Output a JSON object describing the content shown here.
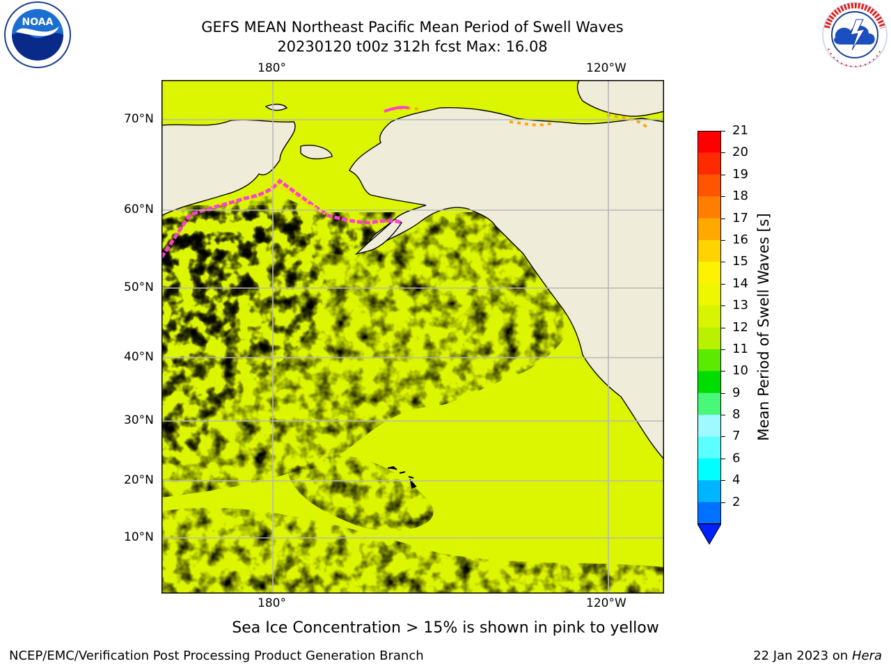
{
  "header": {
    "title": "GEFS MEAN Northeast Pacific Mean Period of Swell Waves",
    "subtitle": "20230120 t00z 312h fcst   Max: 16.08"
  },
  "logos": {
    "left": {
      "icon": "noaa-logo-icon",
      "text": "NOAA",
      "ring_text": "NATIONAL OCEANIC AND ATMOSPHERIC ADMINISTRATION · U.S. DEPARTMENT OF COMMERCE"
    },
    "right": {
      "icon": "nws-logo-icon",
      "ring_text": "NATIONAL WEATHER SERVICE"
    }
  },
  "map": {
    "lon_labels_top": [
      "180°",
      "120°W"
    ],
    "lon_labels_bottom": [
      "180°",
      "120°W"
    ],
    "lat_labels": [
      "70°N",
      "60°N",
      "50°N",
      "40°N",
      "30°N",
      "20°N",
      "10°N"
    ],
    "colors": {
      "land": "#efedda",
      "ocean_yellow": "#dcf500",
      "ocean_green": "#3ed400",
      "ocean_light": "#7dea18",
      "ice_cyan": "#9ffaff",
      "ice_pink": "#ff3fd0",
      "grid": "#b8b8b8"
    }
  },
  "colorbar": {
    "label": "Mean Period of Swell Waves [s]",
    "ticks": [
      "21",
      "20",
      "19",
      "18",
      "17",
      "16",
      "15",
      "14",
      "13",
      "12",
      "11",
      "10",
      "9",
      "8",
      "7",
      "6",
      "4",
      "2"
    ],
    "colors": [
      "#ff0000",
      "#ff2a00",
      "#ff5500",
      "#ff7e00",
      "#ffa800",
      "#ffd200",
      "#fff200",
      "#eef700",
      "#d7f500",
      "#b9f100",
      "#5bea00",
      "#00dd00",
      "#48f878",
      "#9ffaff",
      "#5cffff",
      "#00ffff",
      "#00b5ff",
      "#0072ff",
      "#0020ff"
    ]
  },
  "footer": {
    "note": "Sea Ice Concentration > 15% is shown in pink to yellow",
    "left": "NCEP/EMC/Verification Post Processing Product Generation Branch",
    "right_date": "22 Jan 2023 on",
    "right_host": "Hera"
  }
}
